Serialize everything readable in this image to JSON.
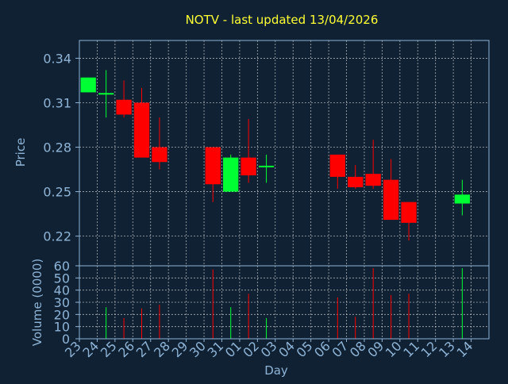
{
  "chart_data": {
    "type": "candlestick",
    "title": "NOTV - last updated 13/04/2026",
    "xlabel": "Day",
    "price_panel": {
      "ylabel": "Price",
      "ylim": [
        0.2,
        0.352
      ],
      "yticks": [
        "0.22",
        "0.25",
        "0.28",
        "0.31",
        "0.34"
      ],
      "ytick_values": [
        0.22,
        0.25,
        0.28,
        0.31,
        0.34
      ],
      "grid": true
    },
    "volume_panel": {
      "ylabel": "Volume (0000)",
      "ylim": [
        0,
        60
      ],
      "yticks": [
        "0",
        "10",
        "20",
        "30",
        "40",
        "50",
        "60"
      ],
      "ytick_values": [
        0,
        10,
        20,
        30,
        40,
        50,
        60
      ],
      "grid": true
    },
    "days": [
      "23",
      "24",
      "25",
      "26",
      "27",
      "28",
      "29",
      "30",
      "31",
      "01",
      "02",
      "03",
      "04",
      "05",
      "06",
      "07",
      "08",
      "09",
      "10",
      "11",
      "12",
      "13",
      "14"
    ],
    "candles": [
      {
        "day": "23",
        "open": 0.317,
        "close": 0.327,
        "high": 0.327,
        "low": 0.317,
        "volume": 0
      },
      {
        "day": "24",
        "open": 0.316,
        "close": 0.316,
        "high": 0.332,
        "low": 0.3,
        "volume": 26
      },
      {
        "day": "25",
        "open": 0.312,
        "close": 0.302,
        "high": 0.325,
        "low": 0.3,
        "volume": 17
      },
      {
        "day": "26",
        "open": 0.31,
        "close": 0.273,
        "high": 0.32,
        "low": 0.273,
        "volume": 25
      },
      {
        "day": "27",
        "open": 0.28,
        "close": 0.27,
        "high": 0.3,
        "low": 0.265,
        "volume": 28
      },
      {
        "day": "30",
        "open": 0.28,
        "close": 0.255,
        "high": 0.28,
        "low": 0.243,
        "volume": 57
      },
      {
        "day": "31",
        "open": 0.25,
        "close": 0.273,
        "high": 0.275,
        "low": 0.25,
        "volume": 26
      },
      {
        "day": "01",
        "open": 0.273,
        "close": 0.261,
        "high": 0.299,
        "low": 0.256,
        "volume": 37
      },
      {
        "day": "02",
        "open": 0.267,
        "close": 0.267,
        "high": 0.275,
        "low": 0.256,
        "volume": 17
      },
      {
        "day": "06",
        "open": 0.275,
        "close": 0.26,
        "high": 0.275,
        "low": 0.252,
        "volume": 34
      },
      {
        "day": "07",
        "open": 0.26,
        "close": 0.253,
        "high": 0.268,
        "low": 0.252,
        "volume": 18
      },
      {
        "day": "08",
        "open": 0.262,
        "close": 0.254,
        "high": 0.285,
        "low": 0.252,
        "volume": 58
      },
      {
        "day": "09",
        "open": 0.258,
        "close": 0.231,
        "high": 0.272,
        "low": 0.231,
        "volume": 36
      },
      {
        "day": "10",
        "open": 0.243,
        "close": 0.229,
        "high": 0.243,
        "low": 0.217,
        "volume": 37
      },
      {
        "day": "13",
        "open": 0.242,
        "close": 0.248,
        "high": 0.258,
        "low": 0.234,
        "volume": 58
      }
    ],
    "colors": {
      "background": "#0f2133",
      "axis": "#8fb4d6",
      "grid": "#e0e0e0",
      "title": "#ffff33",
      "up": "#00ff33",
      "down": "#ff0000"
    }
  }
}
